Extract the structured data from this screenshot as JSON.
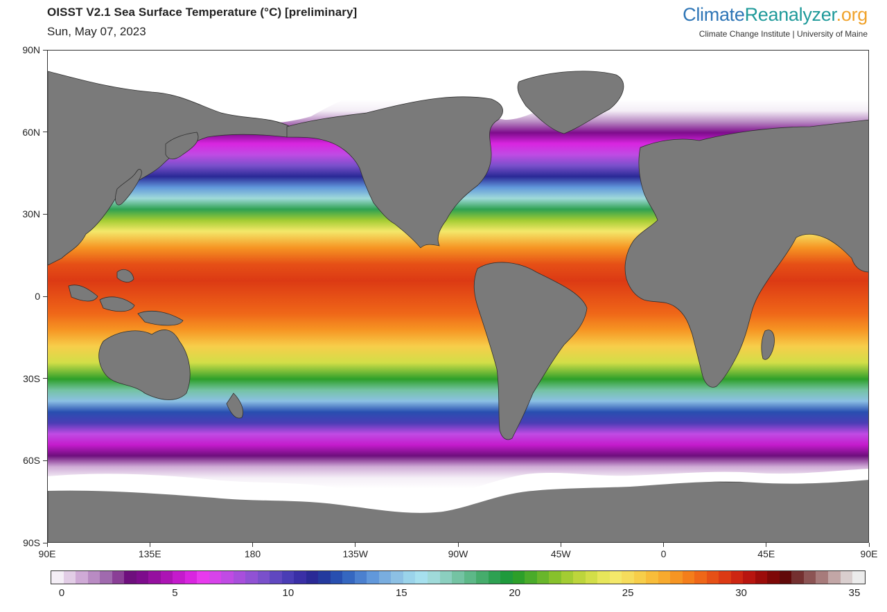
{
  "header": {
    "title": "OISST V2.1 Sea Surface Temperature (°C) [preliminary]",
    "date": "Sun, May 07, 2023"
  },
  "branding": {
    "logo_part1": "Climate",
    "logo_part2": "Reanalyzer",
    "logo_part3": ".org",
    "logo_colors": [
      "#2e75b6",
      "#1f9a9a",
      "#f0a32c"
    ],
    "subtitle": "Climate Change Institute | University of Maine"
  },
  "map": {
    "projection": "equirectangular",
    "lon_range": [
      90,
      450
    ],
    "lat_range": [
      -90,
      90
    ],
    "land_color": "#7a7a7a",
    "ice_color": "#ffffff",
    "lat_ticks": [
      {
        "lat": 90,
        "label": "90N"
      },
      {
        "lat": 60,
        "label": "60N"
      },
      {
        "lat": 30,
        "label": "30N"
      },
      {
        "lat": 0,
        "label": "0"
      },
      {
        "lat": -30,
        "label": "30S"
      },
      {
        "lat": -60,
        "label": "60S"
      },
      {
        "lat": -90,
        "label": "90S"
      }
    ],
    "lon_ticks": [
      {
        "lon": 90,
        "label": "90E"
      },
      {
        "lon": 135,
        "label": "135E"
      },
      {
        "lon": 180,
        "label": "180"
      },
      {
        "lon": 225,
        "label": "135W"
      },
      {
        "lon": 270,
        "label": "90W"
      },
      {
        "lon": 315,
        "label": "45W"
      },
      {
        "lon": 360,
        "label": "0"
      },
      {
        "lon": 405,
        "label": "45E"
      },
      {
        "lon": 450,
        "label": "90E"
      }
    ]
  },
  "colorbar": {
    "min": 0,
    "max": 35,
    "tick_labels": [
      {
        "value": 0,
        "label": "0"
      },
      {
        "value": 5,
        "label": "5"
      },
      {
        "value": 10,
        "label": "10"
      },
      {
        "value": 15,
        "label": "15"
      },
      {
        "value": 20,
        "label": "20"
      },
      {
        "value": 25,
        "label": "25"
      },
      {
        "value": 30,
        "label": "30"
      },
      {
        "value": 35,
        "label": "35"
      }
    ],
    "colors": [
      "#f4eef6",
      "#e2cde6",
      "#cfaad6",
      "#b98bc3",
      "#a06aae",
      "#8a3f96",
      "#6e0f7d",
      "#7d0c8c",
      "#95109f",
      "#ac14b4",
      "#c41bcc",
      "#d925e0",
      "#e83aee",
      "#d743ea",
      "#c04be4",
      "#a84fdc",
      "#9152d4",
      "#7a50cb",
      "#6048c0",
      "#4a3db5",
      "#3a2fa6",
      "#2a2996",
      "#243a9e",
      "#284fb0",
      "#3567c0",
      "#4b80cf",
      "#6198db",
      "#79addf",
      "#8cc0e4",
      "#9ad3ea",
      "#a6e0ee",
      "#9fdad9",
      "#8bcfbf",
      "#74c3a3",
      "#5db888",
      "#46ac6c",
      "#2ea152",
      "#1f9a3c",
      "#2d9f2a",
      "#4aab2a",
      "#69b62b",
      "#87c12c",
      "#a3cc33",
      "#bdd53c",
      "#d2de48",
      "#e7e65a",
      "#f4e86a",
      "#f6dc5c",
      "#f7ce4a",
      "#f8bd3a",
      "#f7aa2e",
      "#f69523",
      "#f47e1b",
      "#ef6718",
      "#e65016",
      "#dc3a14",
      "#cd2612",
      "#b8150f",
      "#9c0c0a",
      "#7e0807",
      "#610a0a",
      "#743030",
      "#8c5454",
      "#a77b7b",
      "#c2a6a6",
      "#d9cece",
      "#ececec"
    ]
  },
  "sst_bands": [
    {
      "lat": 89,
      "temp": -2
    },
    {
      "lat": 72,
      "temp": -2
    },
    {
      "lat": 68,
      "temp": 0
    },
    {
      "lat": 64,
      "temp": 2
    },
    {
      "lat": 60,
      "temp": 4
    },
    {
      "lat": 56,
      "temp": 6
    },
    {
      "lat": 52,
      "temp": 7.5
    },
    {
      "lat": 48,
      "temp": 9
    },
    {
      "lat": 44,
      "temp": 11
    },
    {
      "lat": 40,
      "temp": 14
    },
    {
      "lat": 36,
      "temp": 16.5
    },
    {
      "lat": 32,
      "temp": 19
    },
    {
      "lat": 28,
      "temp": 22
    },
    {
      "lat": 24,
      "temp": 24.5
    },
    {
      "lat": 18,
      "temp": 27
    },
    {
      "lat": 12,
      "temp": 28.3
    },
    {
      "lat": 6,
      "temp": 29
    },
    {
      "lat": 0,
      "temp": 28.7
    },
    {
      "lat": -6,
      "temp": 28.2
    },
    {
      "lat": -12,
      "temp": 27
    },
    {
      "lat": -18,
      "temp": 25.5
    },
    {
      "lat": -24,
      "temp": 23
    },
    {
      "lat": -30,
      "temp": 20
    },
    {
      "lat": -34,
      "temp": 17.5
    },
    {
      "lat": -38,
      "temp": 15
    },
    {
      "lat": -42,
      "temp": 12.5
    },
    {
      "lat": -46,
      "temp": 10
    },
    {
      "lat": -50,
      "temp": 7.5
    },
    {
      "lat": -54,
      "temp": 5.5
    },
    {
      "lat": -58,
      "temp": 3.5
    },
    {
      "lat": -62,
      "temp": 1.5
    },
    {
      "lat": -66,
      "temp": 0
    },
    {
      "lat": -70,
      "temp": -2
    },
    {
      "lat": -89,
      "temp": -2
    }
  ]
}
